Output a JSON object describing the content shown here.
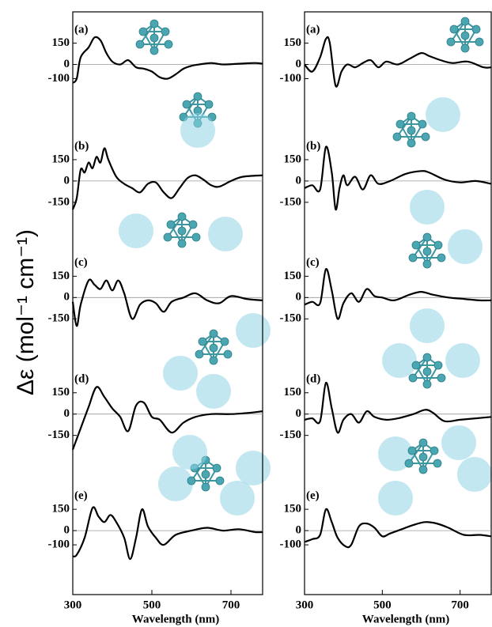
{
  "y_label": "Δε (mol⁻¹ cm⁻¹)",
  "chart_data": [
    {
      "type": "line",
      "label": "(a)",
      "color": "#000000",
      "xlim": [
        300,
        780
      ],
      "ylim": [
        -450,
        370
      ],
      "yticks": [
        150,
        0,
        -100
      ],
      "x": [
        300,
        310,
        320,
        340,
        355,
        370,
        385,
        400,
        420,
        440,
        460,
        480,
        500,
        520,
        540,
        560,
        580,
        600,
        620,
        650,
        680,
        720,
        760,
        780
      ],
      "values": [
        -130,
        -100,
        50,
        120,
        190,
        170,
        80,
        20,
        0,
        30,
        -20,
        -30,
        -50,
        -90,
        -100,
        -70,
        -30,
        -10,
        0,
        10,
        0,
        5,
        10,
        5
      ]
    },
    {
      "type": "line",
      "label": "(b)",
      "color": "#000000",
      "xlim": [
        300,
        780
      ],
      "ylim": [
        -450,
        370
      ],
      "yticks": [
        150,
        0,
        -150
      ],
      "x": [
        300,
        310,
        320,
        330,
        340,
        350,
        360,
        370,
        380,
        390,
        410,
        430,
        450,
        470,
        490,
        510,
        530,
        550,
        570,
        590,
        610,
        630,
        650,
        670,
        700,
        730,
        780
      ],
      "values": [
        -200,
        -120,
        80,
        60,
        130,
        90,
        170,
        130,
        230,
        150,
        30,
        -20,
        -50,
        -80,
        -20,
        -10,
        -80,
        -120,
        -50,
        20,
        40,
        10,
        -30,
        -40,
        0,
        30,
        40
      ]
    },
    {
      "type": "line",
      "label": "(c)",
      "color": "#000000",
      "xlim": [
        300,
        780
      ],
      "ylim": [
        -450,
        370
      ],
      "yticks": [
        150,
        0,
        -150
      ],
      "x": [
        300,
        310,
        320,
        340,
        355,
        370,
        385,
        400,
        415,
        430,
        450,
        470,
        490,
        510,
        530,
        550,
        580,
        610,
        640,
        670,
        700,
        740,
        780
      ],
      "values": [
        -30,
        -200,
        -50,
        120,
        90,
        60,
        120,
        50,
        120,
        30,
        -150,
        -50,
        -20,
        -40,
        -100,
        -30,
        0,
        30,
        -20,
        -40,
        10,
        -10,
        -20
      ]
    },
    {
      "type": "line",
      "label": "(d)",
      "color": "#000000",
      "xlim": [
        300,
        780
      ],
      "ylim": [
        -450,
        370
      ],
      "yticks": [
        150,
        0,
        -150
      ],
      "x": [
        300,
        320,
        340,
        360,
        380,
        400,
        420,
        440,
        460,
        480,
        500,
        520,
        550,
        580,
        610,
        650,
        700,
        750,
        780
      ],
      "values": [
        -250,
        -100,
        50,
        190,
        120,
        40,
        -20,
        -120,
        60,
        80,
        -20,
        -40,
        -130,
        -60,
        -20,
        0,
        0,
        10,
        20
      ]
    },
    {
      "type": "line",
      "label": "(e)",
      "color": "#000000",
      "xlim": [
        300,
        780
      ],
      "ylim": [
        -450,
        370
      ],
      "yticks": [
        150,
        0,
        -100
      ],
      "xticks": [
        300,
        500,
        700
      ],
      "x_label": "Wavelength (nm)",
      "x": [
        300,
        310,
        330,
        350,
        365,
        380,
        395,
        410,
        430,
        445,
        460,
        475,
        490,
        510,
        530,
        560,
        600,
        640,
        680,
        720,
        760,
        780
      ],
      "values": [
        -180,
        -170,
        -50,
        160,
        100,
        60,
        110,
        60,
        -50,
        -200,
        -50,
        150,
        30,
        -50,
        -100,
        -30,
        0,
        20,
        0,
        10,
        -10,
        -10
      ]
    },
    {
      "type": "line",
      "label": "(a)",
      "color": "#000000",
      "xlim": [
        300,
        780
      ],
      "ylim": [
        -450,
        370
      ],
      "yticks": [
        150,
        0,
        -100
      ],
      "x": [
        300,
        320,
        340,
        355,
        365,
        380,
        395,
        410,
        430,
        450,
        470,
        490,
        510,
        540,
        570,
        600,
        620,
        650,
        680,
        720,
        760,
        780
      ],
      "values": [
        0,
        -50,
        50,
        180,
        150,
        -150,
        -50,
        0,
        -20,
        10,
        30,
        -20,
        20,
        0,
        40,
        80,
        60,
        30,
        10,
        20,
        -20,
        -20
      ]
    },
    {
      "type": "line",
      "label": "(b)",
      "color": "#000000",
      "xlim": [
        300,
        780
      ],
      "ylim": [
        -450,
        370
      ],
      "yticks": [
        150,
        0,
        -150
      ],
      "x": [
        300,
        320,
        340,
        355,
        370,
        380,
        390,
        400,
        410,
        430,
        450,
        470,
        490,
        520,
        560,
        600,
        620,
        660,
        700,
        740,
        780
      ],
      "values": [
        -50,
        -30,
        -60,
        240,
        60,
        -200,
        -50,
        40,
        -30,
        30,
        -60,
        40,
        -20,
        0,
        50,
        70,
        60,
        10,
        -10,
        0,
        -20
      ]
    },
    {
      "type": "line",
      "label": "(c)",
      "color": "#000000",
      "xlim": [
        300,
        780
      ],
      "ylim": [
        -450,
        370
      ],
      "yticks": [
        150,
        0,
        -150
      ],
      "x": [
        300,
        320,
        340,
        355,
        370,
        385,
        400,
        420,
        440,
        460,
        480,
        500,
        530,
        570,
        600,
        630,
        670,
        710,
        750,
        780
      ],
      "values": [
        -50,
        -30,
        -40,
        200,
        50,
        -150,
        -40,
        30,
        -30,
        60,
        10,
        0,
        -20,
        20,
        40,
        20,
        0,
        -10,
        -20,
        -20
      ]
    },
    {
      "type": "line",
      "label": "(d)",
      "color": "#000000",
      "xlim": [
        300,
        780
      ],
      "ylim": [
        -450,
        370
      ],
      "yticks": [
        150,
        0,
        -150
      ],
      "x": [
        300,
        320,
        340,
        355,
        370,
        385,
        400,
        420,
        440,
        460,
        480,
        510,
        540,
        580,
        610,
        630,
        660,
        700,
        740,
        780
      ],
      "values": [
        -40,
        -30,
        -50,
        220,
        40,
        -130,
        -40,
        0,
        -60,
        20,
        -20,
        -40,
        -30,
        0,
        30,
        10,
        -50,
        -40,
        -30,
        -20
      ]
    },
    {
      "type": "line",
      "label": "(e)",
      "color": "#000000",
      "xlim": [
        300,
        780
      ],
      "ylim": [
        -450,
        370
      ],
      "yticks": [
        150,
        0,
        -100
      ],
      "xticks": [
        300,
        500,
        700
      ],
      "x_label": "Wavelength (nm)",
      "x": [
        300,
        320,
        340,
        355,
        370,
        385,
        405,
        420,
        440,
        460,
        480,
        500,
        520,
        550,
        580,
        610,
        640,
        670,
        710,
        750,
        780
      ],
      "values": [
        -80,
        -60,
        -30,
        150,
        60,
        -50,
        -110,
        -100,
        30,
        50,
        20,
        -40,
        -20,
        10,
        40,
        60,
        50,
        20,
        -30,
        -30,
        -40
      ]
    }
  ]
}
